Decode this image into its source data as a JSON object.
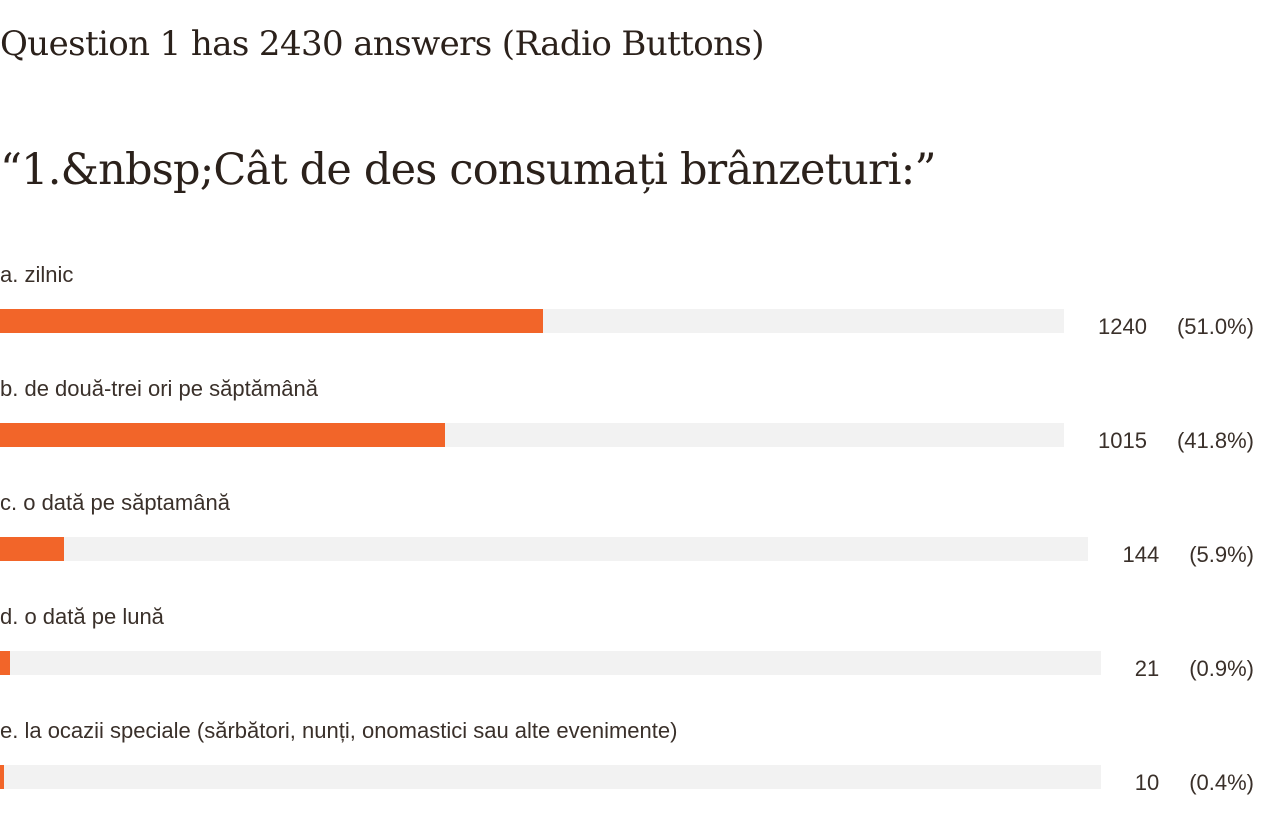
{
  "summary": "Question 1 has 2430 answers (Radio Buttons)",
  "question": {
    "text": "“1.&nbsp;Cât de des consumați brânzeturi:”"
  },
  "colors": {
    "bar_fill": "#f26529",
    "bar_track": "#f2f2f2"
  },
  "answers": [
    {
      "label": "a. zilnic",
      "count": "1240",
      "percent": "(51.0%)",
      "value": 51.0
    },
    {
      "label": "b. de două-trei ori pe săptămână",
      "count": "1015",
      "percent": "(41.8%)",
      "value": 41.8
    },
    {
      "label": "c. o dată pe săptamână",
      "count": "144",
      "percent": "(5.9%)",
      "value": 5.9
    },
    {
      "label": "d. o dată pe lună",
      "count": "21",
      "percent": "(0.9%)",
      "value": 0.9
    },
    {
      "label": "e. la ocazii speciale (sărbători, nunți, onomastici sau alte evenimente)",
      "count": "10",
      "percent": "(0.4%)",
      "value": 0.4
    }
  ]
}
